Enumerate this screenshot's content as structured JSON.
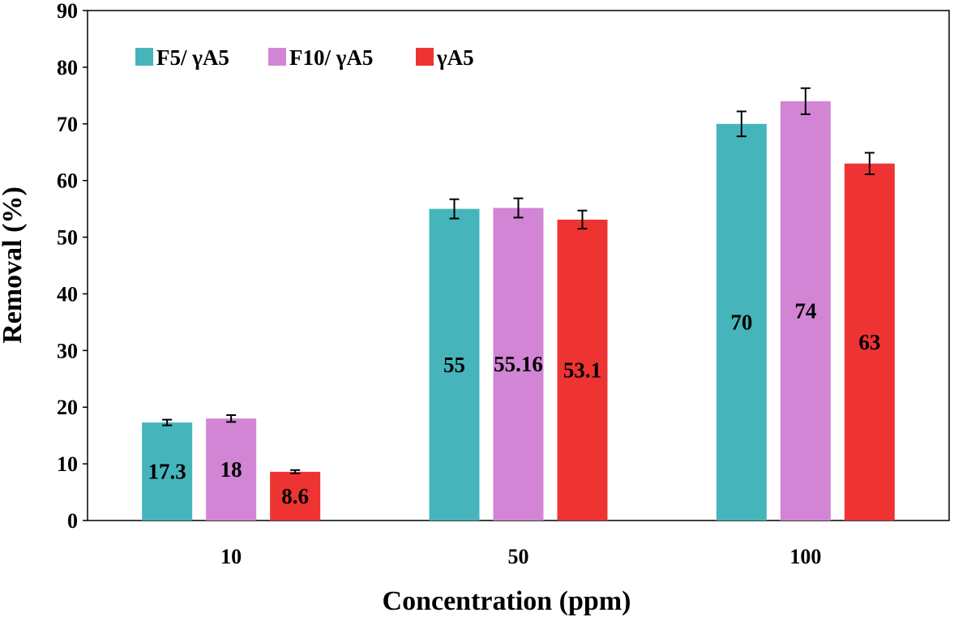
{
  "chart_data": {
    "type": "bar",
    "title": "",
    "xlabel": "Concentration (ppm)",
    "ylabel": "Removal (%)",
    "ylim": [
      0,
      90
    ],
    "yticks": [
      0,
      10,
      20,
      30,
      40,
      50,
      60,
      70,
      80,
      90
    ],
    "categories": [
      "10",
      "50",
      "100"
    ],
    "legend_position": "top-left",
    "grid": false,
    "series": [
      {
        "name": "F5/ γA5",
        "color": "#46b5bb",
        "values": [
          17.3,
          55,
          70
        ],
        "errors": [
          0.5,
          1.7,
          2.2
        ],
        "labels": [
          "17.3",
          "55",
          "70"
        ]
      },
      {
        "name": "F10/ γA5",
        "color": "#d285d5",
        "values": [
          18,
          55.16,
          74
        ],
        "errors": [
          0.6,
          1.7,
          2.3
        ],
        "labels": [
          "18",
          "55.16",
          "74"
        ]
      },
      {
        "name": "γA5",
        "color": "#ee3333",
        "values": [
          8.6,
          53.1,
          63
        ],
        "errors": [
          0.3,
          1.6,
          1.9
        ],
        "labels": [
          "8.6",
          "53.1",
          "63"
        ]
      }
    ]
  }
}
